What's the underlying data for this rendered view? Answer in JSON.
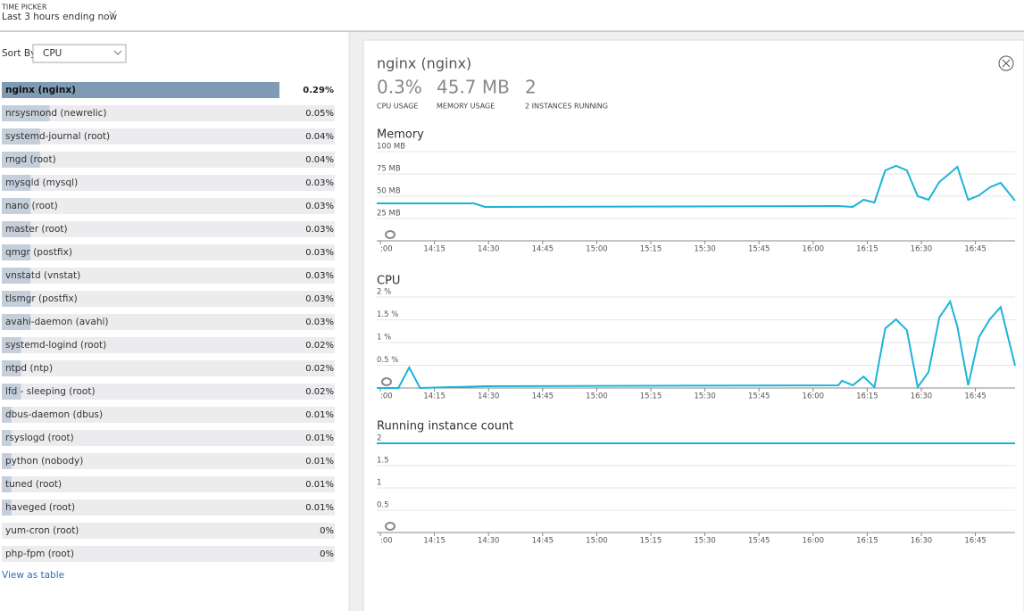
{
  "header": {
    "picker_label": "TIME PICKER",
    "picker_value": "Last 3 hours ending now"
  },
  "sort": {
    "label": "Sort By",
    "value": "CPU"
  },
  "processes": [
    {
      "name": "nginx (nginx)",
      "value": 0.29,
      "label": "0.29%"
    },
    {
      "name": "nrsysmond (newrelic)",
      "value": 0.05,
      "label": "0.05%"
    },
    {
      "name": "systemd-journal (root)",
      "value": 0.04,
      "label": "0.04%"
    },
    {
      "name": "rngd (root)",
      "value": 0.04,
      "label": "0.04%"
    },
    {
      "name": "mysqld (mysql)",
      "value": 0.03,
      "label": "0.03%"
    },
    {
      "name": "nano (root)",
      "value": 0.03,
      "label": "0.03%"
    },
    {
      "name": "master (root)",
      "value": 0.03,
      "label": "0.03%"
    },
    {
      "name": "qmgr (postfix)",
      "value": 0.03,
      "label": "0.03%"
    },
    {
      "name": "vnstatd (vnstat)",
      "value": 0.03,
      "label": "0.03%"
    },
    {
      "name": "tlsmgr (postfix)",
      "value": 0.03,
      "label": "0.03%"
    },
    {
      "name": "avahi-daemon (avahi)",
      "value": 0.03,
      "label": "0.03%"
    },
    {
      "name": "systemd-logind (root)",
      "value": 0.02,
      "label": "0.02%"
    },
    {
      "name": "ntpd (ntp)",
      "value": 0.02,
      "label": "0.02%"
    },
    {
      "name": "lfd - sleeping (root)",
      "value": 0.02,
      "label": "0.02%"
    },
    {
      "name": "dbus-daemon (dbus)",
      "value": 0.01,
      "label": "0.01%"
    },
    {
      "name": "rsyslogd (root)",
      "value": 0.01,
      "label": "0.01%"
    },
    {
      "name": "python (nobody)",
      "value": 0.01,
      "label": "0.01%"
    },
    {
      "name": "tuned (root)",
      "value": 0.01,
      "label": "0.01%"
    },
    {
      "name": "haveged (root)",
      "value": 0.01,
      "label": "0.01%"
    },
    {
      "name": "yum-cron (root)",
      "value": 0,
      "label": "0%"
    },
    {
      "name": "php-fpm (root)",
      "value": 0,
      "label": "0%"
    }
  ],
  "view_link": "View as table",
  "detail": {
    "title": "nginx (nginx)",
    "stats": [
      {
        "value": "0.3%",
        "label": "CPU USAGE"
      },
      {
        "value": "45.7 MB",
        "label": "MEMORY USAGE"
      },
      {
        "value": "2",
        "label": "2 INSTANCES RUNNING"
      }
    ]
  },
  "chart_data": [
    {
      "type": "line",
      "title": "Memory",
      "color": "#1bb4d8",
      "grid": true,
      "x": [
        839,
        866,
        869,
        967,
        971,
        974,
        977,
        980,
        983,
        986,
        989,
        992,
        995,
        998,
        1000,
        1003,
        1006,
        1009,
        1012,
        1016
      ],
      "values": [
        42,
        42,
        38,
        39,
        38,
        46,
        43,
        79,
        84,
        79,
        50,
        46,
        66,
        76,
        83,
        46,
        51,
        60,
        65,
        45
      ],
      "xlim": [
        839,
        1016
      ],
      "ylim": [
        0,
        100
      ],
      "xticks": [
        {
          "value": 840,
          "label": ":00"
        },
        {
          "value": 855,
          "label": "14:15"
        },
        {
          "value": 870,
          "label": "14:30"
        },
        {
          "value": 885,
          "label": "14:45"
        },
        {
          "value": 900,
          "label": "15:00"
        },
        {
          "value": 915,
          "label": "15:15"
        },
        {
          "value": 930,
          "label": "15:30"
        },
        {
          "value": 945,
          "label": "15:45"
        },
        {
          "value": 960,
          "label": "16:00"
        },
        {
          "value": 975,
          "label": "16:15"
        },
        {
          "value": 990,
          "label": "16:30"
        },
        {
          "value": 1005,
          "label": "16:45"
        }
      ],
      "yticks": [
        {
          "value": 25,
          "label": "25 MB"
        },
        {
          "value": 50,
          "label": "50 MB"
        },
        {
          "value": 75,
          "label": "75 MB"
        },
        {
          "value": 100,
          "label": "100 MB"
        }
      ]
    },
    {
      "type": "line",
      "title": "CPU",
      "color": "#1bb4d8",
      "grid": true,
      "x": [
        839,
        845,
        848,
        851,
        869,
        967,
        968,
        971,
        974,
        977,
        980,
        983,
        986,
        989,
        992,
        995,
        998,
        1000,
        1003,
        1006,
        1009,
        1012,
        1016
      ],
      "values": [
        0,
        0,
        0.45,
        0,
        0.04,
        0.06,
        0.16,
        0.06,
        0.25,
        0.02,
        1.31,
        1.51,
        1.27,
        0.02,
        0.35,
        1.55,
        1.9,
        1.35,
        0.06,
        1.12,
        1.51,
        1.78,
        0.49
      ],
      "xlim": [
        839,
        1016
      ],
      "ylim": [
        0,
        2
      ],
      "xticks": [
        {
          "value": 840,
          "label": ":00"
        },
        {
          "value": 855,
          "label": "14:15"
        },
        {
          "value": 870,
          "label": "14:30"
        },
        {
          "value": 885,
          "label": "14:45"
        },
        {
          "value": 900,
          "label": "15:00"
        },
        {
          "value": 915,
          "label": "15:15"
        },
        {
          "value": 930,
          "label": "15:30"
        },
        {
          "value": 945,
          "label": "15:45"
        },
        {
          "value": 960,
          "label": "16:00"
        },
        {
          "value": 975,
          "label": "16:15"
        },
        {
          "value": 990,
          "label": "16:30"
        },
        {
          "value": 1005,
          "label": "16:45"
        }
      ],
      "yticks": [
        {
          "value": 0.5,
          "label": "0.5 %"
        },
        {
          "value": 1,
          "label": "1 %"
        },
        {
          "value": 1.5,
          "label": "1.5 %"
        },
        {
          "value": 2,
          "label": "2 %"
        }
      ]
    },
    {
      "type": "line",
      "title": "Running instance count",
      "color": "#1bb4d8",
      "grid": true,
      "x": [
        839,
        1016
      ],
      "values": [
        2,
        2
      ],
      "xlim": [
        839,
        1016
      ],
      "ylim": [
        0,
        2
      ],
      "xticks": [
        {
          "value": 840,
          "label": ":00"
        },
        {
          "value": 855,
          "label": "14:15"
        },
        {
          "value": 870,
          "label": "14:30"
        },
        {
          "value": 885,
          "label": "14:45"
        },
        {
          "value": 900,
          "label": "15:00"
        },
        {
          "value": 915,
          "label": "15:15"
        },
        {
          "value": 930,
          "label": "15:30"
        },
        {
          "value": 945,
          "label": "15:45"
        },
        {
          "value": 960,
          "label": "16:00"
        },
        {
          "value": 975,
          "label": "16:15"
        },
        {
          "value": 990,
          "label": "16:30"
        },
        {
          "value": 1005,
          "label": "16:45"
        }
      ],
      "yticks": [
        0.5,
        1,
        1.5,
        2
      ]
    }
  ]
}
